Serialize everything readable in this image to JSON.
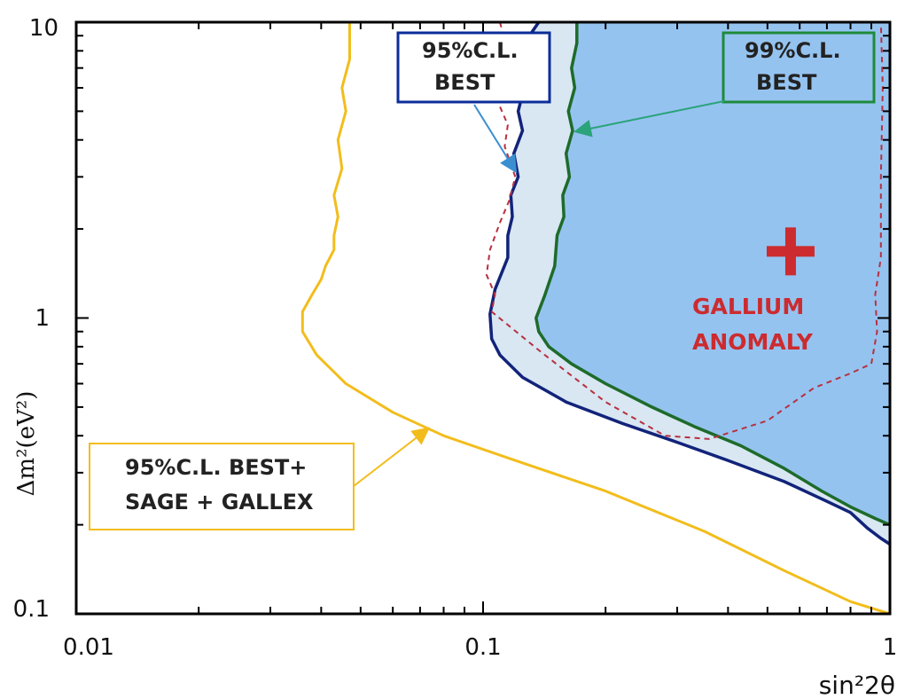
{
  "chart_data": {
    "type": "line",
    "xlabel": "sin²2θ",
    "ylabel": "Δm²(eV²)",
    "xscale": "log",
    "yscale": "log",
    "xlim": [
      0.01,
      1
    ],
    "ylim": [
      0.1,
      10
    ],
    "x_ticks": [
      "0.01",
      "0.1",
      "1"
    ],
    "y_ticks": [
      "0.1",
      "1",
      "10"
    ],
    "grid": false,
    "colors": {
      "fill_99": "#95c3f0",
      "fill_95": "#d8e7f2",
      "best95": "#12237a",
      "best99": "#1e6b2a",
      "combined": "#f2bd1c",
      "gallium": "#b8303f",
      "point": "#cc2b2f"
    },
    "series": [
      {
        "name": "95%C.L. BEST",
        "style": "solid",
        "x": [
          0.137,
          0.13,
          0.126,
          0.128,
          0.122,
          0.125,
          0.119,
          0.122,
          0.117,
          0.118,
          0.115,
          0.115,
          0.107,
          0.104,
          0.105,
          0.11,
          0.125,
          0.16,
          0.22,
          0.3,
          0.4,
          0.55,
          0.7,
          0.8,
          0.88,
          0.95,
          1.0
        ],
        "y": [
          10,
          9,
          7.5,
          6.5,
          5,
          4.3,
          3.6,
          3,
          2.6,
          2.2,
          1.9,
          1.6,
          1.25,
          1.03,
          0.85,
          0.75,
          0.63,
          0.52,
          0.44,
          0.38,
          0.33,
          0.28,
          0.24,
          0.22,
          0.195,
          0.18,
          0.172
        ]
      },
      {
        "name": "99%C.L. BEST",
        "style": "solid",
        "x": [
          0.17,
          0.17,
          0.165,
          0.168,
          0.162,
          0.166,
          0.16,
          0.163,
          0.157,
          0.158,
          0.152,
          0.15,
          0.142,
          0.135,
          0.137,
          0.145,
          0.165,
          0.2,
          0.26,
          0.33,
          0.43,
          0.55,
          0.68,
          0.8,
          0.92,
          1.0
        ],
        "y": [
          10,
          8.5,
          7,
          6,
          5,
          4.3,
          3.6,
          3,
          2.6,
          2.2,
          1.9,
          1.5,
          1.2,
          1.0,
          0.9,
          0.8,
          0.7,
          0.6,
          0.5,
          0.43,
          0.37,
          0.31,
          0.26,
          0.23,
          0.21,
          0.2
        ]
      },
      {
        "name": "95%C.L.BEST+ SAGE + GALLEX",
        "style": "solid",
        "x": [
          0.047,
          0.047,
          0.045,
          0.046,
          0.044,
          0.045,
          0.043,
          0.044,
          0.043,
          0.043,
          0.041,
          0.04,
          0.038,
          0.036,
          0.036,
          0.039,
          0.046,
          0.06,
          0.08,
          0.12,
          0.2,
          0.35,
          0.55,
          0.8,
          1.0
        ],
        "y": [
          10,
          7.5,
          6,
          5,
          4,
          3.2,
          2.6,
          2.2,
          1.9,
          1.7,
          1.5,
          1.35,
          1.2,
          1.05,
          0.9,
          0.75,
          0.6,
          0.48,
          0.4,
          0.33,
          0.26,
          0.19,
          0.14,
          0.11,
          0.1
        ]
      },
      {
        "name": "GALLIUM ANOMALY",
        "style": "dashed",
        "x": [
          0.11,
          0.115,
          0.11,
          0.108,
          0.115,
          0.113,
          0.12,
          0.116,
          0.11,
          0.104,
          0.102,
          0.107,
          0.105,
          0.14,
          0.2,
          0.28,
          0.36,
          0.5,
          0.65,
          0.8,
          0.9,
          0.93,
          0.92,
          0.95,
          0.95,
          0.96,
          0.95
        ],
        "y": [
          10,
          8,
          6.5,
          5.5,
          4.5,
          3.8,
          3,
          2.5,
          2.1,
          1.7,
          1.4,
          1.2,
          1.05,
          0.76,
          0.52,
          0.4,
          0.39,
          0.45,
          0.58,
          0.65,
          0.7,
          0.9,
          1.2,
          1.6,
          3.0,
          6.0,
          10
        ]
      }
    ],
    "points": [
      {
        "name": "best-fit",
        "x": 0.57,
        "y": 1.68,
        "marker": "plus"
      }
    ],
    "annotations": {
      "box95": [
        "95%C.L.",
        "BEST"
      ],
      "box99": [
        "99%C.L.",
        "BEST"
      ],
      "boxCombined": [
        "95%C.L. BEST+",
        "SAGE + GALLEX"
      ],
      "anomaly": [
        "GALLIUM",
        "ANOMALY"
      ]
    }
  }
}
